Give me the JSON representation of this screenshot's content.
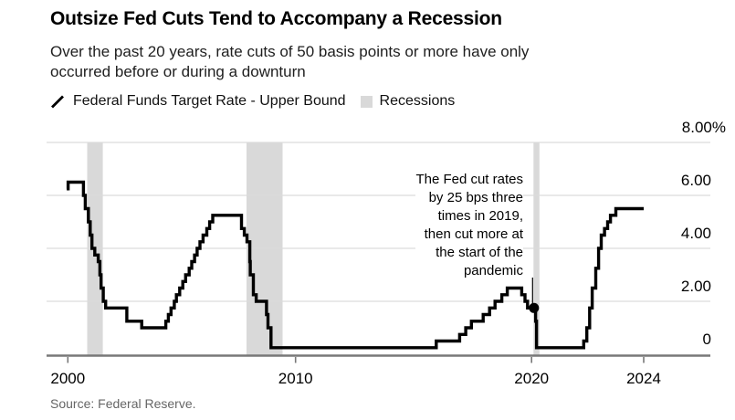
{
  "header": {
    "title": "Outsize Fed Cuts Tend to Accompany a Recession",
    "subtitle_lines": [
      "Over the past 20 years, rate cuts of 50 basis points or more have only",
      "occurred before or during a downturn"
    ]
  },
  "legend": {
    "series_label": "Federal Funds Target Rate - Upper Bound",
    "recessions_label": "Recessions"
  },
  "annotation": {
    "lines": [
      "The Fed cut rates",
      "by 25 bps three",
      "times in 2019,",
      "then cut more at",
      "the start of the",
      "pandemic"
    ]
  },
  "source": "Source: Federal Reserve.",
  "colors": {
    "line": "#000000",
    "recession_band": "#d9d9d9",
    "gridline": "#dcdcdc",
    "axis": "#787878",
    "source_text": "#666666"
  },
  "chart_data": {
    "type": "line",
    "step": "after",
    "title": "Outsize Fed Cuts Tend to Accompany a Recession",
    "ylabel": "%",
    "x_range": [
      2000.3,
      2024.75
    ],
    "y_range": [
      0,
      8
    ],
    "grid": true,
    "legend_position": "top-left",
    "y_ticks": [
      {
        "label": "8.00%",
        "value": 8
      },
      {
        "label": "6.00",
        "value": 6
      },
      {
        "label": "4.00",
        "value": 4
      },
      {
        "label": "2.00",
        "value": 2
      },
      {
        "label": "0",
        "value": 0
      }
    ],
    "x_ticks": [
      {
        "label": "2000",
        "year": 2000.35
      },
      {
        "label": "2010",
        "year": 2010
      },
      {
        "label": "2020",
        "year": 2020
      },
      {
        "label": "2024",
        "year": 2024.75
      }
    ],
    "series": [
      {
        "name": "Federal Funds Target Rate - Upper Bound",
        "points": [
          [
            2000.3,
            6.25
          ],
          [
            2000.36,
            6.5
          ],
          [
            2001.01,
            6.0
          ],
          [
            2001.09,
            5.5
          ],
          [
            2001.22,
            5.0
          ],
          [
            2001.3,
            4.5
          ],
          [
            2001.37,
            4.0
          ],
          [
            2001.49,
            3.75
          ],
          [
            2001.64,
            3.5
          ],
          [
            2001.71,
            3.0
          ],
          [
            2001.76,
            2.5
          ],
          [
            2001.85,
            2.0
          ],
          [
            2001.95,
            1.75
          ],
          [
            2002.85,
            1.25
          ],
          [
            2003.48,
            1.0
          ],
          [
            2004.5,
            1.25
          ],
          [
            2004.61,
            1.5
          ],
          [
            2004.72,
            1.75
          ],
          [
            2004.86,
            2.0
          ],
          [
            2004.95,
            2.25
          ],
          [
            2005.09,
            2.5
          ],
          [
            2005.22,
            2.75
          ],
          [
            2005.34,
            3.0
          ],
          [
            2005.49,
            3.25
          ],
          [
            2005.6,
            3.5
          ],
          [
            2005.72,
            3.75
          ],
          [
            2005.83,
            4.0
          ],
          [
            2005.95,
            4.25
          ],
          [
            2006.08,
            4.5
          ],
          [
            2006.24,
            4.75
          ],
          [
            2006.36,
            5.0
          ],
          [
            2006.49,
            5.25
          ],
          [
            2007.71,
            4.75
          ],
          [
            2007.83,
            4.5
          ],
          [
            2007.94,
            4.25
          ],
          [
            2008.06,
            3.5
          ],
          [
            2008.08,
            3.0
          ],
          [
            2008.21,
            2.25
          ],
          [
            2008.33,
            2.0
          ],
          [
            2008.77,
            1.5
          ],
          [
            2008.83,
            1.0
          ],
          [
            2008.96,
            0.25
          ],
          [
            2015.96,
            0.5
          ],
          [
            2016.95,
            0.75
          ],
          [
            2017.21,
            1.0
          ],
          [
            2017.45,
            1.25
          ],
          [
            2017.95,
            1.5
          ],
          [
            2018.22,
            1.75
          ],
          [
            2018.45,
            2.0
          ],
          [
            2018.74,
            2.25
          ],
          [
            2018.97,
            2.5
          ],
          [
            2019.58,
            2.25
          ],
          [
            2019.72,
            2.0
          ],
          [
            2019.83,
            1.75
          ],
          [
            2020.17,
            1.25
          ],
          [
            2020.21,
            0.25
          ],
          [
            2022.21,
            0.5
          ],
          [
            2022.34,
            1.0
          ],
          [
            2022.46,
            1.75
          ],
          [
            2022.57,
            2.5
          ],
          [
            2022.72,
            3.25
          ],
          [
            2022.84,
            4.0
          ],
          [
            2022.95,
            4.5
          ],
          [
            2023.09,
            4.75
          ],
          [
            2023.22,
            5.0
          ],
          [
            2023.34,
            5.25
          ],
          [
            2023.57,
            5.5
          ]
        ]
      }
    ],
    "recessions": [
      [
        2001.17,
        2001.83
      ],
      [
        2007.92,
        2009.45
      ],
      [
        2020.08,
        2020.33
      ]
    ],
    "marker": {
      "year": 2020.1,
      "value": 1.75
    }
  }
}
